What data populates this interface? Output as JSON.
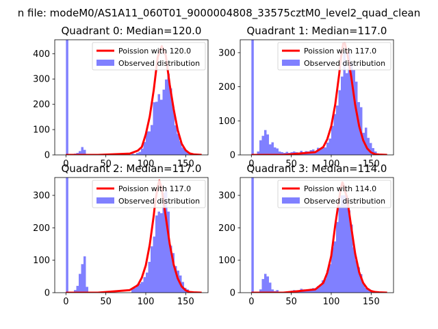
{
  "figure": {
    "suptitle": "n file: modeM0/AS1A11_060T01_9000004808_33575cztM0_level2_quad_clean"
  },
  "colors": {
    "poisson": "#ff0000",
    "observed": "#8080ff",
    "text": "#000000"
  },
  "chart_data": [
    {
      "type": "bar",
      "title": "Quadrant 0: Median=120.0",
      "median": 120.0,
      "xlim": [
        -14,
        178
      ],
      "ylim": [
        0,
        455
      ],
      "xticks": [
        0,
        50,
        100,
        150
      ],
      "yticks": [
        0,
        100,
        200,
        300,
        400
      ],
      "legend": {
        "location": "top-right",
        "poisson_label": "Poission with 120.0",
        "observed_label": "Observed distribution"
      },
      "series": [
        {
          "name": "Observed distribution",
          "kind": "histogram",
          "x": [
            0,
            10,
            13,
            16,
            19,
            22,
            82,
            85,
            88,
            91,
            94,
            97,
            100,
            103,
            106,
            109,
            112,
            115,
            118,
            121,
            124,
            127,
            130,
            133,
            136,
            139,
            142,
            145,
            148,
            151,
            154
          ],
          "values": [
            460,
            5,
            8,
            15,
            31,
            20,
            5,
            3,
            8,
            12,
            25,
            51,
            93,
            93,
            118,
            208,
            210,
            240,
            218,
            258,
            298,
            321,
            263,
            190,
            117,
            83,
            54,
            29,
            21,
            12,
            2
          ]
        },
        {
          "name": "Poission with 120.0",
          "kind": "curve",
          "x": [
            0,
            40,
            80,
            90,
            95,
            100,
            105,
            110,
            115,
            120,
            125,
            130,
            135,
            140,
            145,
            150,
            155,
            160,
            165,
            170
          ],
          "values": [
            0,
            0,
            5,
            17,
            31,
            81,
            152,
            257,
            387,
            430,
            394,
            277,
            180,
            98,
            44,
            18,
            6,
            2,
            1,
            0
          ]
        }
      ]
    },
    {
      "type": "bar",
      "title": "Quadrant 1: Median=117.0",
      "median": 117.0,
      "xlim": [
        -14,
        178
      ],
      "ylim": [
        0,
        338
      ],
      "xticks": [
        0,
        50,
        100,
        150
      ],
      "yticks": [
        0,
        100,
        200,
        300
      ],
      "legend": {
        "location": "top-right",
        "poisson_label": "Poission with 117.0",
        "observed_label": "Observed distribution"
      },
      "series": [
        {
          "name": "Observed distribution",
          "kind": "histogram",
          "x": [
            0,
            7,
            10,
            13,
            16,
            19,
            22,
            25,
            28,
            31,
            34,
            37,
            40,
            43,
            46,
            49,
            52,
            55,
            58,
            61,
            64,
            67,
            70,
            73,
            76,
            79,
            82,
            85,
            88,
            91,
            94,
            97,
            100,
            103,
            106,
            109,
            112,
            115,
            118,
            121,
            124,
            127,
            130,
            133,
            136,
            139,
            142,
            145,
            148,
            151,
            154,
            157
          ],
          "values": [
            345,
            10,
            43,
            56,
            73,
            60,
            31,
            37,
            22,
            19,
            10,
            8,
            6,
            9,
            6,
            8,
            10,
            8,
            7,
            12,
            8,
            11,
            10,
            14,
            16,
            10,
            21,
            18,
            22,
            22,
            36,
            48,
            85,
            120,
            145,
            190,
            230,
            300,
            240,
            300,
            270,
            250,
            215,
            155,
            140,
            65,
            80,
            50,
            35,
            20,
            10,
            3
          ]
        },
        {
          "name": "Poission with 117.0",
          "kind": "curve",
          "x": [
            0,
            40,
            80,
            90,
            95,
            100,
            105,
            110,
            112,
            115,
            117,
            120,
            125,
            130,
            135,
            140,
            145,
            150,
            155,
            160,
            170
          ],
          "values": [
            0,
            0,
            8,
            23,
            46,
            84,
            148,
            238,
            283,
            327,
            328,
            300,
            230,
            147,
            84,
            43,
            19,
            7,
            2,
            1,
            0
          ]
        }
      ]
    },
    {
      "type": "bar",
      "title": "Quadrant 2: Median=117.0",
      "median": 117.0,
      "xlim": [
        -14,
        178
      ],
      "ylim": [
        0,
        355
      ],
      "xticks": [
        0,
        50,
        100,
        150
      ],
      "yticks": [
        0,
        100,
        200,
        300
      ],
      "legend": {
        "location": "top-right",
        "poisson_label": "Poission with 117.0",
        "observed_label": "Observed distribution"
      },
      "series": [
        {
          "name": "Observed distribution",
          "kind": "histogram",
          "x": [
            0,
            10,
            13,
            16,
            19,
            22,
            25,
            82,
            85,
            88,
            91,
            94,
            97,
            100,
            103,
            106,
            109,
            112,
            115,
            118,
            121,
            124,
            127,
            130,
            133,
            136,
            139,
            142,
            145,
            148,
            151,
            154
          ],
          "values": [
            360,
            8,
            21,
            58,
            88,
            112,
            18,
            12,
            15,
            25,
            28,
            33,
            48,
            62,
            95,
            143,
            173,
            238,
            250,
            245,
            308,
            318,
            250,
            145,
            122,
            82,
            68,
            53,
            33,
            15,
            10,
            3
          ]
        },
        {
          "name": "Poission with 117.0",
          "kind": "curve",
          "x": [
            0,
            40,
            80,
            90,
            95,
            100,
            105,
            110,
            112,
            115,
            117,
            120,
            125,
            130,
            135,
            140,
            145,
            150,
            155,
            160,
            170
          ],
          "values": [
            0,
            0,
            8,
            23,
            46,
            84,
            148,
            238,
            283,
            327,
            346,
            320,
            235,
            150,
            86,
            44,
            19,
            7,
            2,
            1,
            0
          ]
        }
      ]
    },
    {
      "type": "bar",
      "title": "Quadrant 3: Median=114.0",
      "median": 114.0,
      "xlim": [
        -14,
        178
      ],
      "ylim": [
        0,
        355
      ],
      "xticks": [
        0,
        50,
        100,
        150
      ],
      "yticks": [
        0,
        100,
        200,
        300
      ],
      "legend": {
        "location": "top-right",
        "poisson_label": "Poission with 114.0",
        "observed_label": "Observed distribution"
      },
      "series": [
        {
          "name": "Observed distribution",
          "kind": "histogram",
          "x": [
            0,
            10,
            13,
            16,
            19,
            22,
            25,
            28,
            31,
            49,
            52,
            55,
            58,
            61,
            64,
            67,
            70,
            73,
            76,
            79,
            82,
            85,
            88,
            91,
            94,
            97,
            100,
            103,
            106,
            109,
            112,
            115,
            118,
            121,
            124,
            127,
            130,
            133,
            136,
            139,
            142,
            145,
            148,
            151,
            154,
            157
          ],
          "values": [
            360,
            10,
            42,
            58,
            50,
            31,
            10,
            5,
            8,
            6,
            8,
            5,
            6,
            12,
            10,
            7,
            8,
            12,
            14,
            10,
            20,
            25,
            38,
            43,
            68,
            88,
            140,
            158,
            218,
            268,
            300,
            300,
            300,
            254,
            210,
            140,
            100,
            78,
            57,
            28,
            15,
            13,
            8,
            4,
            2,
            1
          ]
        },
        {
          "name": "Poission with 114.0",
          "kind": "curve",
          "x": [
            0,
            40,
            80,
            90,
            95,
            100,
            105,
            110,
            112,
            114,
            115,
            120,
            125,
            130,
            135,
            140,
            145,
            150,
            155,
            160,
            170
          ],
          "values": [
            0,
            0,
            10,
            30,
            61,
            113,
            208,
            291,
            321,
            340,
            335,
            290,
            203,
            120,
            63,
            30,
            13,
            5,
            2,
            1,
            0
          ]
        }
      ]
    }
  ]
}
